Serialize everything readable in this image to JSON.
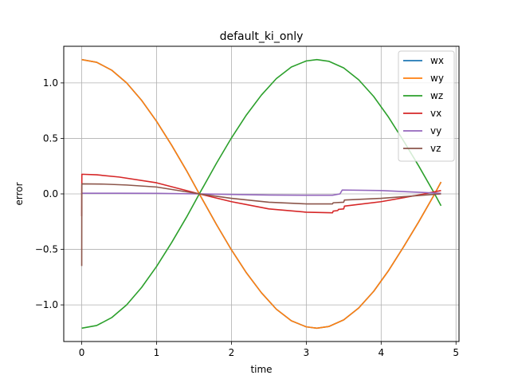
{
  "chart_data": {
    "type": "line",
    "title": "default_ki_only",
    "xlabel": "time",
    "ylabel": "error",
    "xlim": [
      -0.24,
      5.04
    ],
    "ylim": [
      -1.33,
      1.33
    ],
    "xticks": [
      0,
      1,
      2,
      3,
      4,
      5
    ],
    "yticks": [
      -1.0,
      -0.5,
      0.0,
      0.5,
      1.0
    ],
    "xtick_labels": [
      "0",
      "1",
      "2",
      "3",
      "4",
      "5"
    ],
    "ytick_labels": [
      "−1.0",
      "−0.5",
      "0.0",
      "0.5",
      "1.0"
    ],
    "grid": true,
    "legend": "top-right",
    "series": [
      {
        "name": "wx",
        "color": "#1f77b4",
        "x": [
          0,
          0.2,
          0.4,
          0.6,
          0.8,
          1.0,
          1.2,
          1.4,
          1.571,
          1.8,
          2.0,
          2.2,
          2.4,
          2.6,
          2.8,
          3.0,
          3.1416,
          3.3,
          3.5,
          3.7,
          3.9,
          4.1,
          4.3,
          4.5,
          4.7,
          4.8
        ],
        "y": [
          1.21,
          1.186,
          1.115,
          1.0,
          0.843,
          0.654,
          0.44,
          0.21,
          0.0,
          -0.276,
          -0.504,
          -0.711,
          -0.89,
          -1.039,
          -1.143,
          -1.198,
          -1.21,
          -1.195,
          -1.135,
          -1.028,
          -0.878,
          -0.69,
          -0.477,
          -0.254,
          -0.018,
          0.107
        ]
      },
      {
        "name": "wy",
        "color": "#ff7f0e",
        "x": [
          0,
          0.2,
          0.4,
          0.6,
          0.8,
          1.0,
          1.2,
          1.4,
          1.571,
          1.8,
          2.0,
          2.2,
          2.4,
          2.6,
          2.8,
          3.0,
          3.1416,
          3.3,
          3.5,
          3.7,
          3.9,
          4.1,
          4.3,
          4.5,
          4.7,
          4.8
        ],
        "y": [
          1.21,
          1.186,
          1.115,
          1.0,
          0.843,
          0.654,
          0.44,
          0.21,
          0.0,
          -0.276,
          -0.504,
          -0.711,
          -0.89,
          -1.039,
          -1.143,
          -1.198,
          -1.21,
          -1.195,
          -1.135,
          -1.028,
          -0.878,
          -0.69,
          -0.477,
          -0.254,
          -0.018,
          0.107
        ]
      },
      {
        "name": "wz",
        "color": "#2ca02c",
        "x": [
          0,
          0.2,
          0.4,
          0.6,
          0.8,
          1.0,
          1.2,
          1.4,
          1.571,
          1.8,
          2.0,
          2.2,
          2.4,
          2.6,
          2.8,
          3.0,
          3.1416,
          3.3,
          3.5,
          3.7,
          3.9,
          4.1,
          4.3,
          4.5,
          4.7,
          4.8
        ],
        "y": [
          -1.21,
          -1.186,
          -1.115,
          -1.0,
          -0.843,
          -0.654,
          -0.44,
          -0.21,
          0.0,
          0.276,
          0.504,
          0.711,
          0.89,
          1.039,
          1.143,
          1.198,
          1.21,
          1.195,
          1.135,
          1.028,
          0.878,
          0.69,
          0.477,
          0.254,
          0.018,
          -0.107
        ]
      },
      {
        "name": "vx",
        "color": "#d62728",
        "x": [
          0,
          0.001,
          0.002,
          0.2,
          0.5,
          1.0,
          1.571,
          2.0,
          2.5,
          3.0,
          3.35,
          3.36,
          3.42,
          3.43,
          3.5,
          3.51,
          4.0,
          4.5,
          4.8
        ],
        "y": [
          -0.2,
          0.0,
          0.177,
          0.172,
          0.152,
          0.1,
          0.0,
          -0.07,
          -0.135,
          -0.165,
          -0.17,
          -0.155,
          -0.15,
          -0.14,
          -0.135,
          -0.11,
          -0.07,
          -0.01,
          0.03
        ]
      },
      {
        "name": "vy",
        "color": "#9467bd",
        "x": [
          0,
          0.002,
          0.5,
          1.0,
          1.571,
          2.0,
          2.5,
          3.0,
          3.35,
          3.45,
          3.48,
          4.0,
          4.5,
          4.8
        ],
        "y": [
          0.0,
          0.006,
          0.006,
          0.005,
          0.0,
          -0.005,
          -0.01,
          -0.012,
          -0.012,
          0.0,
          0.035,
          0.03,
          0.015,
          0.005
        ]
      },
      {
        "name": "vz",
        "color": "#8c564b",
        "x": [
          0,
          0.001,
          0.002,
          0.3,
          0.6,
          1.0,
          1.571,
          2.0,
          2.5,
          3.0,
          3.35,
          3.36,
          3.5,
          3.51,
          4.0,
          4.5,
          4.8
        ],
        "y": [
          -0.65,
          0.0,
          0.09,
          0.088,
          0.08,
          0.062,
          0.0,
          -0.04,
          -0.075,
          -0.09,
          -0.09,
          -0.08,
          -0.075,
          -0.055,
          -0.04,
          -0.015,
          0.0
        ]
      }
    ]
  }
}
